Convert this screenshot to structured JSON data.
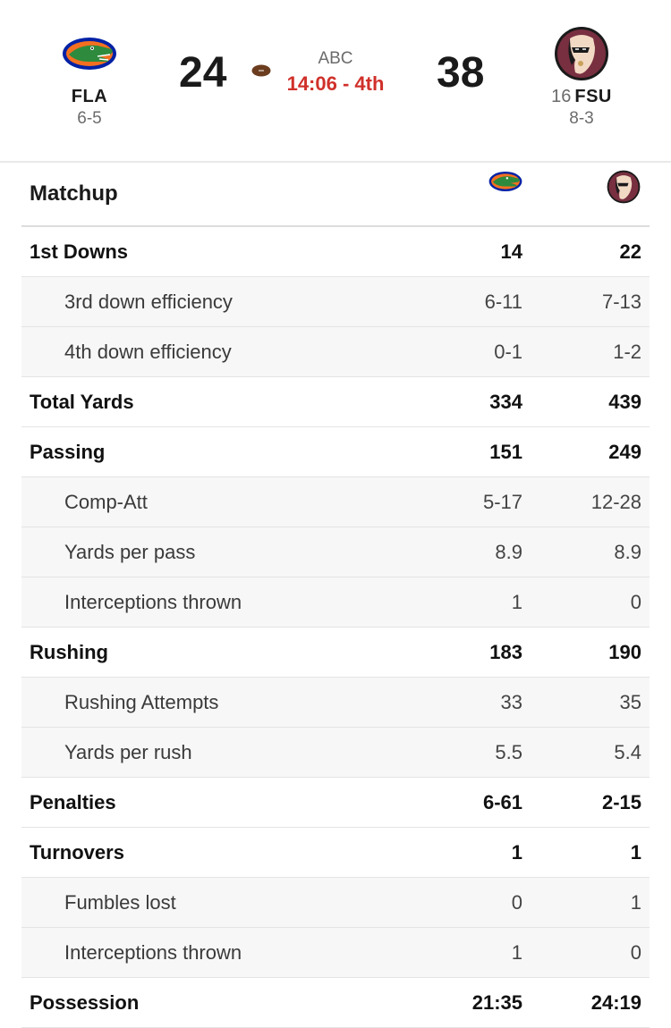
{
  "game": {
    "away": {
      "abbr": "FLA",
      "rank": "",
      "record": "6-5",
      "score": "24",
      "logo": "gator-logo"
    },
    "home": {
      "abbr": "FSU",
      "rank": "16",
      "record": "8-3",
      "score": "38",
      "logo": "seminole-logo"
    },
    "network": "ABC",
    "clock": "14:06 - 4th",
    "possession": "away",
    "colors": {
      "clock": "#d0302a",
      "fla_orange": "#f37021",
      "fla_blue": "#0021a5",
      "fsu_garnet": "#782f40"
    }
  },
  "matchup": {
    "title": "Matchup",
    "rows": [
      {
        "label": "1st Downs",
        "away": "14",
        "home": "22",
        "type": "main"
      },
      {
        "label": "3rd down efficiency",
        "away": "6-11",
        "home": "7-13",
        "type": "sub"
      },
      {
        "label": "4th down efficiency",
        "away": "0-1",
        "home": "1-2",
        "type": "sub"
      },
      {
        "label": "Total Yards",
        "away": "334",
        "home": "439",
        "type": "main"
      },
      {
        "label": "Passing",
        "away": "151",
        "home": "249",
        "type": "main"
      },
      {
        "label": "Comp-Att",
        "away": "5-17",
        "home": "12-28",
        "type": "sub"
      },
      {
        "label": "Yards per pass",
        "away": "8.9",
        "home": "8.9",
        "type": "sub"
      },
      {
        "label": "Interceptions thrown",
        "away": "1",
        "home": "0",
        "type": "sub"
      },
      {
        "label": "Rushing",
        "away": "183",
        "home": "190",
        "type": "main"
      },
      {
        "label": "Rushing Attempts",
        "away": "33",
        "home": "35",
        "type": "sub"
      },
      {
        "label": "Yards per rush",
        "away": "5.5",
        "home": "5.4",
        "type": "sub"
      },
      {
        "label": "Penalties",
        "away": "6-61",
        "home": "2-15",
        "type": "main"
      },
      {
        "label": "Turnovers",
        "away": "1",
        "home": "1",
        "type": "main"
      },
      {
        "label": "Fumbles lost",
        "away": "0",
        "home": "1",
        "type": "sub"
      },
      {
        "label": "Interceptions thrown",
        "away": "1",
        "home": "0",
        "type": "sub"
      },
      {
        "label": "Possession",
        "away": "21:35",
        "home": "24:19",
        "type": "main"
      }
    ]
  }
}
